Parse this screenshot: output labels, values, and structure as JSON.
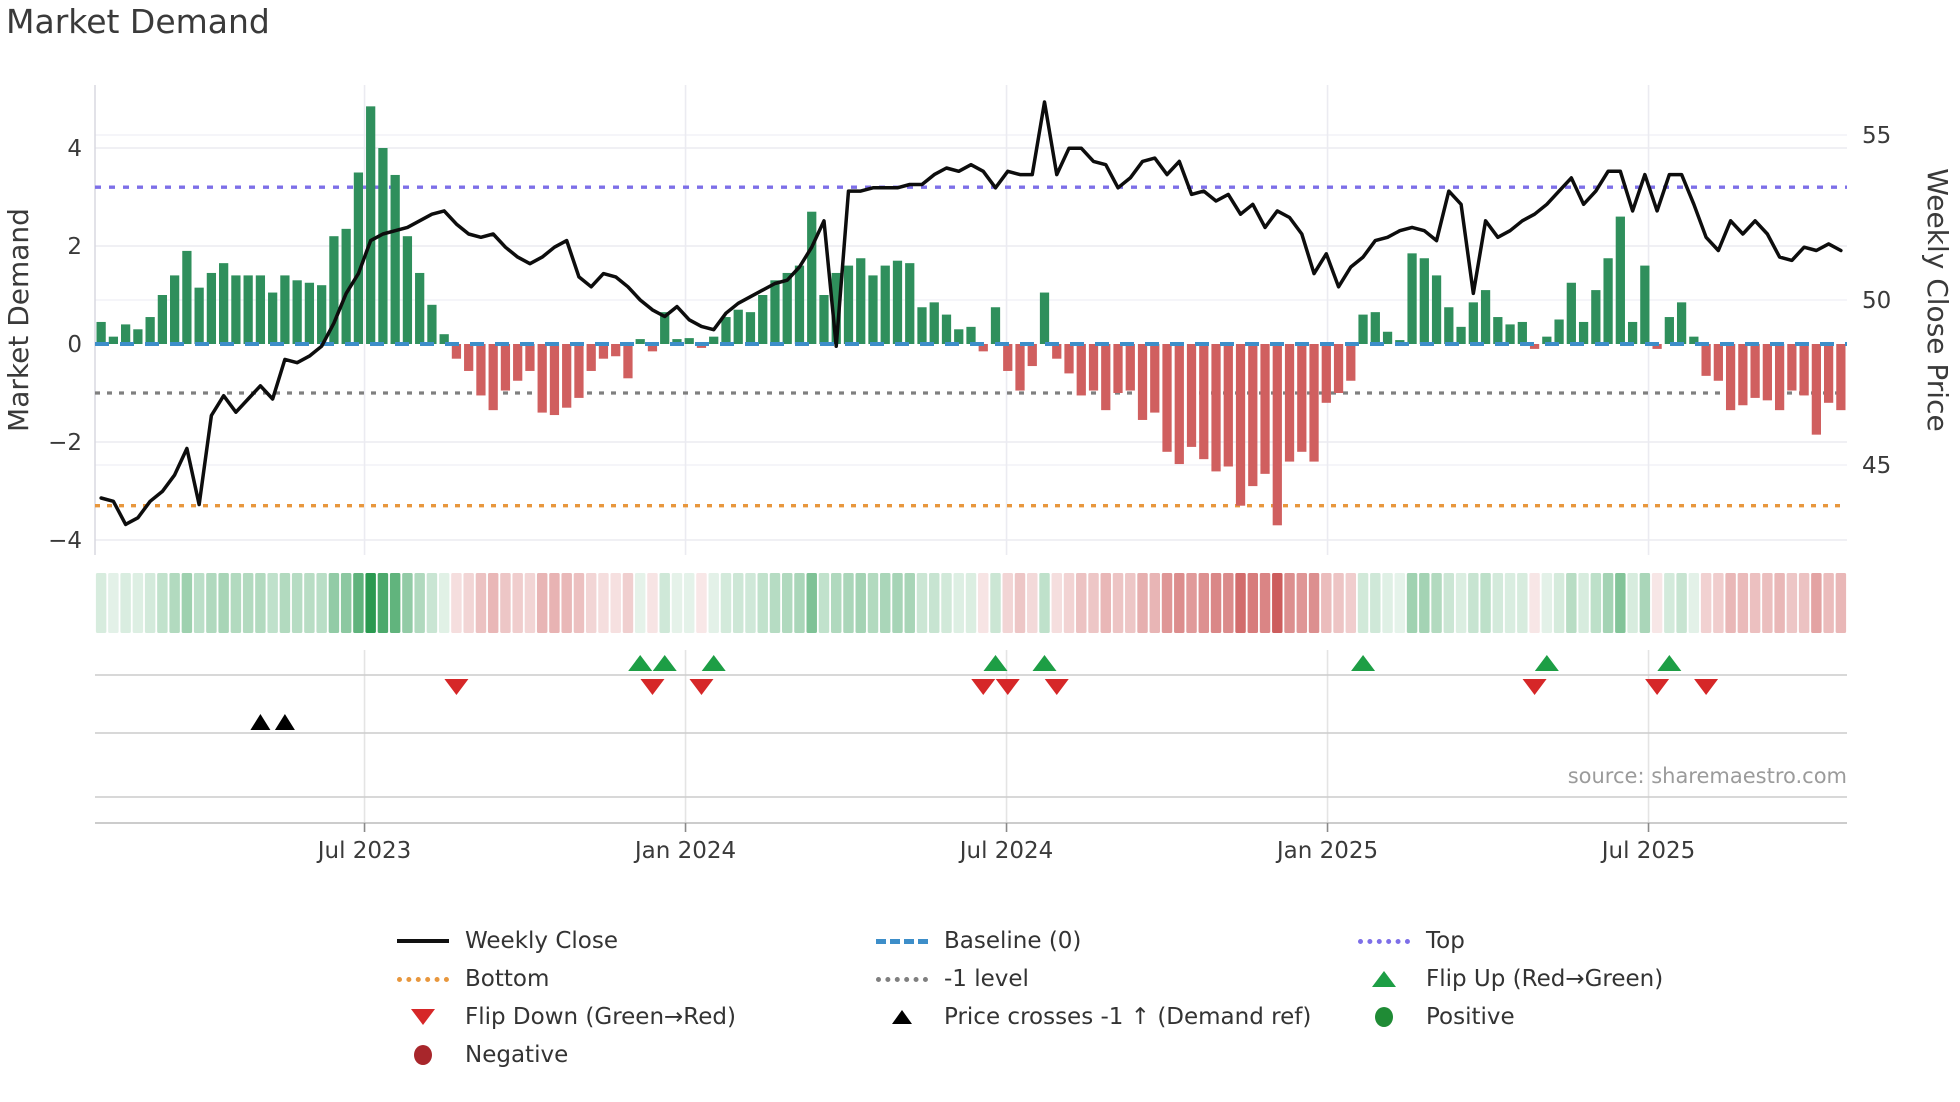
{
  "title": "Market Demand",
  "source": "source: sharemaestro.com",
  "axes": {
    "left_label": "Market Demand",
    "right_label": "Weekly Close Price",
    "left_ticks": [
      4,
      2,
      0,
      -2,
      -4
    ],
    "right_ticks": [
      55,
      50,
      45
    ],
    "x_tick_labels": [
      "Jul 2023",
      "Jan 2024",
      "Jul 2024",
      "Jan 2025",
      "Jul 2025"
    ]
  },
  "colors": {
    "bar_positive": "#2f8f5c",
    "bar_negative": "#d05f5f",
    "price_line": "#0d0d0d",
    "baseline": "#3d8ec9",
    "top_line": "#7d6fe8",
    "bottom_line": "#e8973d",
    "minus_one_line": "#7f7f7f",
    "flip_up": "#1d9e45",
    "flip_down": "#d62728",
    "price_cross": "#000000",
    "positive_dot": "#1f8b35",
    "negative_dot": "#a8262b",
    "heat_positive": "#1f9447",
    "heat_negative": "#c94f4f",
    "grid": "#ebebf1"
  },
  "chart_data": {
    "type": "bar",
    "title": "Market Demand",
    "x_start_date": "2023-02-06",
    "x_freq": "weekly",
    "x_ticks": [
      {
        "label": "Jul 2023",
        "week": 21.5
      },
      {
        "label": "Jan 2024",
        "week": 47.7
      },
      {
        "label": "Jul 2024",
        "week": 73.9
      },
      {
        "label": "Jan 2025",
        "week": 100.1
      },
      {
        "label": "Jul 2025",
        "week": 126.3
      }
    ],
    "left_ylim": [
      -4.3,
      5.3
    ],
    "right_ylim": [
      42.3,
      56.5
    ],
    "reference_lines": {
      "baseline": 0,
      "top": 3.2,
      "bottom": -3.3,
      "minus_one": -1
    },
    "series": [
      {
        "name": "Market Demand",
        "type": "bar",
        "axis": "left",
        "values": [
          0.45,
          0.15,
          0.4,
          0.3,
          0.55,
          1.0,
          1.4,
          1.9,
          1.15,
          1.45,
          1.65,
          1.4,
          1.4,
          1.4,
          1.05,
          1.4,
          1.3,
          1.25,
          1.2,
          2.2,
          2.35,
          3.5,
          4.85,
          4.0,
          3.45,
          2.2,
          1.45,
          0.8,
          0.2,
          -0.3,
          -0.55,
          -1.05,
          -1.35,
          -0.95,
          -0.75,
          -0.55,
          -1.4,
          -1.45,
          -1.3,
          -1.1,
          -0.55,
          -0.3,
          -0.25,
          -0.7,
          0.1,
          -0.15,
          0.65,
          0.1,
          0.12,
          -0.08,
          0.15,
          0.55,
          0.7,
          0.65,
          1.0,
          1.3,
          1.45,
          1.6,
          2.7,
          1.0,
          1.45,
          1.6,
          1.75,
          1.4,
          1.6,
          1.7,
          1.65,
          0.75,
          0.85,
          0.6,
          0.3,
          0.35,
          -0.15,
          0.75,
          -0.55,
          -0.95,
          -0.45,
          1.05,
          -0.3,
          -0.6,
          -1.05,
          -0.95,
          -1.35,
          -1.0,
          -0.95,
          -1.55,
          -1.4,
          -2.2,
          -2.45,
          -2.1,
          -2.35,
          -2.6,
          -2.5,
          -3.3,
          -2.9,
          -2.65,
          -3.7,
          -2.4,
          -2.2,
          -2.4,
          -1.2,
          -1.0,
          -0.75,
          0.6,
          0.65,
          0.25,
          0.08,
          1.85,
          1.75,
          1.4,
          0.75,
          0.35,
          0.85,
          1.1,
          0.55,
          0.4,
          0.45,
          -0.1,
          0.15,
          0.5,
          1.25,
          0.45,
          1.1,
          1.75,
          2.6,
          0.45,
          1.6,
          -0.1,
          0.55,
          0.85,
          0.15,
          -0.65,
          -0.75,
          -1.35,
          -1.25,
          -1.1,
          -1.15,
          -1.35,
          -0.95,
          -1.05,
          -1.85,
          -1.2,
          -1.35
        ]
      },
      {
        "name": "Weekly Close",
        "type": "line",
        "axis": "right",
        "values": [
          44.0,
          43.9,
          43.2,
          43.4,
          43.9,
          44.2,
          44.7,
          45.5,
          43.8,
          46.5,
          47.1,
          46.6,
          47.0,
          47.4,
          47.0,
          48.2,
          48.1,
          48.3,
          48.6,
          49.3,
          50.2,
          50.8,
          51.8,
          52.0,
          52.1,
          52.2,
          52.4,
          52.6,
          52.7,
          52.3,
          52.0,
          51.9,
          52.0,
          51.6,
          51.3,
          51.1,
          51.3,
          51.6,
          51.8,
          50.7,
          50.4,
          50.8,
          50.7,
          50.4,
          50.0,
          49.7,
          49.5,
          49.8,
          49.4,
          49.2,
          49.1,
          49.6,
          49.9,
          50.1,
          50.3,
          50.5,
          50.6,
          51.0,
          51.6,
          52.4,
          48.6,
          53.3,
          53.3,
          53.4,
          53.4,
          53.4,
          53.5,
          53.5,
          53.8,
          54.0,
          53.9,
          54.1,
          53.9,
          53.4,
          53.9,
          53.8,
          53.8,
          56.0,
          53.8,
          54.6,
          54.6,
          54.2,
          54.1,
          53.4,
          53.7,
          54.2,
          54.3,
          53.8,
          54.2,
          53.2,
          53.3,
          53.0,
          53.2,
          52.6,
          52.9,
          52.2,
          52.7,
          52.5,
          52.0,
          50.8,
          51.4,
          50.4,
          51.0,
          51.3,
          51.8,
          51.9,
          52.1,
          52.2,
          52.1,
          51.8,
          53.3,
          52.9,
          50.2,
          52.4,
          51.9,
          52.1,
          52.4,
          52.6,
          52.9,
          53.3,
          53.7,
          52.9,
          53.3,
          53.9,
          53.9,
          52.7,
          53.8,
          52.7,
          53.8,
          53.8,
          52.9,
          51.9,
          51.5,
          52.4,
          52.0,
          52.4,
          52.0,
          51.3,
          51.2,
          51.6,
          51.5,
          51.7,
          51.5
        ]
      }
    ],
    "markers": {
      "flip_up_weeks": [
        44,
        46,
        50,
        73,
        77,
        103,
        118,
        128
      ],
      "flip_down_weeks": [
        29,
        45,
        49,
        72,
        74,
        78,
        117,
        127,
        131
      ],
      "price_cross_up_weeks": [
        13,
        15
      ]
    },
    "heatmap": {
      "derived_from": "Market Demand values",
      "position": "strip below main panel"
    }
  },
  "legend": {
    "items": [
      {
        "label": "Weekly Close"
      },
      {
        "label": "Bottom"
      },
      {
        "label": "Flip Down (Green→Red)"
      },
      {
        "label": "Negative"
      },
      {
        "label": "Baseline (0)"
      },
      {
        "label": "-1 level"
      },
      {
        "label": "Price crosses -1 ↑ (Demand ref)"
      },
      {
        "label": "Top"
      },
      {
        "label": "Flip Up (Red→Green)"
      },
      {
        "label": "Positive"
      }
    ]
  }
}
